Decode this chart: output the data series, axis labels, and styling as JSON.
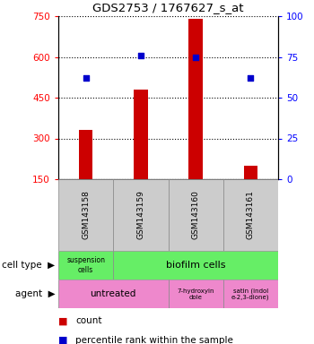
{
  "title": "GDS2753 / 1767627_s_at",
  "samples": [
    "GSM143158",
    "GSM143159",
    "GSM143160",
    "GSM143161"
  ],
  "bar_values": [
    330,
    480,
    740,
    200
  ],
  "bar_bottom": 150,
  "pct_values": [
    62,
    76,
    75,
    62
  ],
  "ylim_left": [
    150,
    750
  ],
  "ylim_right": [
    0,
    100
  ],
  "yticks_left": [
    150,
    300,
    450,
    600,
    750
  ],
  "yticks_right": [
    0,
    25,
    50,
    75,
    100
  ],
  "bar_color": "#cc0000",
  "scatter_color": "#0000cc",
  "cell_type_suspension_color": "#66ee66",
  "cell_type_biofilm_color": "#66ee66",
  "agent_untreated_color": "#ee88cc",
  "agent_other_color": "#ee88cc",
  "sample_box_color": "#cccccc",
  "legend_count": "count",
  "legend_pct": "percentile rank within the sample"
}
